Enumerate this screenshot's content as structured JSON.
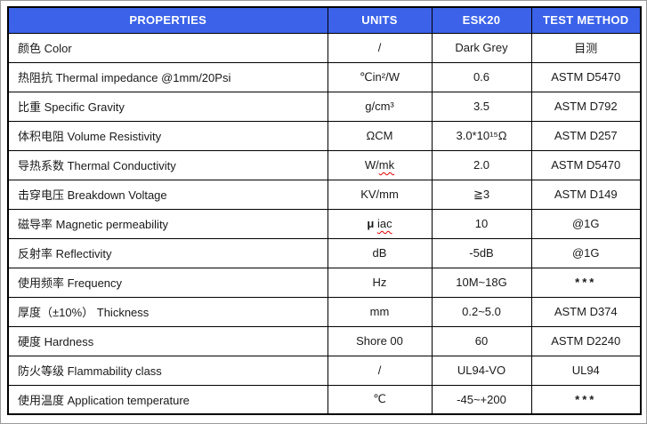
{
  "colors": {
    "header_bg": "#3b62e9",
    "header_text": "#ffffff",
    "table_border": "#000000",
    "spellcheck_underline": "#e00000",
    "page_border": "#9a9a9a"
  },
  "table": {
    "headers": [
      "PROPERTIES",
      "UNITS",
      "ESK20",
      "TEST METHOD"
    ],
    "rows": [
      {
        "property": "颜色 Color",
        "unit": [
          {
            "t": "/"
          }
        ],
        "value": "Dark Grey",
        "method": "目测"
      },
      {
        "property": "热阻抗 Thermal impedance @1mm/20Psi",
        "unit": [
          {
            "t": "℃in²/W"
          }
        ],
        "value": "0.6",
        "method": "ASTM D5470"
      },
      {
        "property": "比重 Specific Gravity",
        "unit": [
          {
            "t": "g/cm³"
          }
        ],
        "value": "3.5",
        "method": "ASTM D792"
      },
      {
        "property": "体积电阻 Volume Resistivity",
        "unit": [
          {
            "t": "ΩCM"
          }
        ],
        "value": "3.0*10¹⁵Ω",
        "method": "ASTM D257"
      },
      {
        "property": "导热系数 Thermal Conductivity",
        "unit": [
          {
            "t": "W/"
          },
          {
            "t": "mk",
            "squiggle": true
          }
        ],
        "value": "2.0",
        "method": "ASTM D5470"
      },
      {
        "property": "击穿电压 Breakdown Voltage",
        "unit": [
          {
            "t": "KV/mm"
          }
        ],
        "value": "≧3",
        "method": "ASTM D149"
      },
      {
        "property": "磁导率 Magnetic permeability",
        "unit": [
          {
            "t": "μ",
            "bold": true
          },
          {
            "t": " "
          },
          {
            "t": "iac",
            "squiggle": true
          }
        ],
        "value": "10",
        "method": "@1G"
      },
      {
        "property": "反射率 Reflectivity",
        "unit": [
          {
            "t": "dB"
          }
        ],
        "value": "-5dB",
        "method": "@1G"
      },
      {
        "property": "使用频率 Frequency",
        "unit": [
          {
            "t": "Hz"
          }
        ],
        "value": "10M~18G",
        "method": "***"
      },
      {
        "property": "厚度（±10%） Thickness",
        "unit": [
          {
            "t": "mm"
          }
        ],
        "value": "0.2~5.0",
        "method": "ASTM D374"
      },
      {
        "property": "硬度 Hardness",
        "unit": [
          {
            "t": "Shore 00"
          }
        ],
        "value": "60",
        "method": "ASTM D2240"
      },
      {
        "property": "防火等级 Flammability class",
        "unit": [
          {
            "t": "/"
          }
        ],
        "value": "UL94-VO",
        "method": "UL94"
      },
      {
        "property": "使用温度 Application temperature",
        "unit": [
          {
            "t": "℃"
          }
        ],
        "value": "-45~+200",
        "method": "***"
      }
    ]
  }
}
